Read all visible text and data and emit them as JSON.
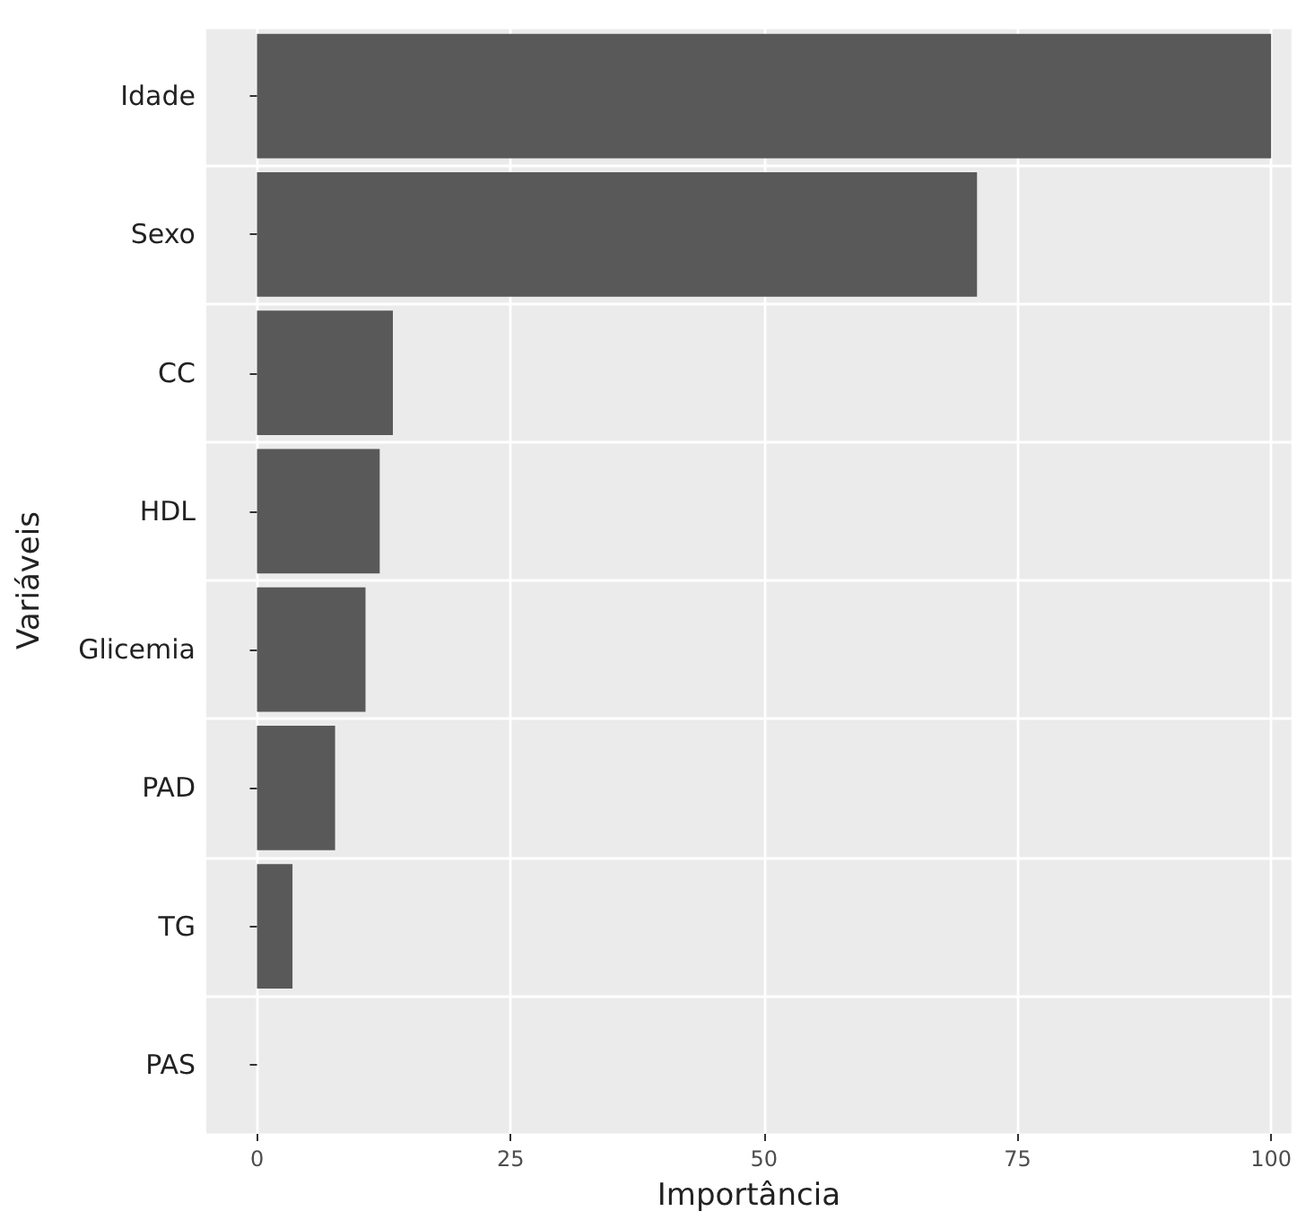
{
  "chart_data": {
    "type": "bar",
    "orientation": "horizontal",
    "xlabel": "Importância",
    "ylabel": "Variáveis",
    "categories": [
      "Idade",
      "Sexo",
      "CC",
      "HDL",
      "Glicemia",
      "PAD",
      "TG",
      "PAS"
    ],
    "values": [
      100,
      71.0,
      13.4,
      12.1,
      10.7,
      7.7,
      3.5,
      0
    ],
    "color": "#595959",
    "xlim": [
      -5,
      102
    ],
    "xticks": [
      0,
      25,
      50,
      75,
      100
    ],
    "grid": true
  }
}
